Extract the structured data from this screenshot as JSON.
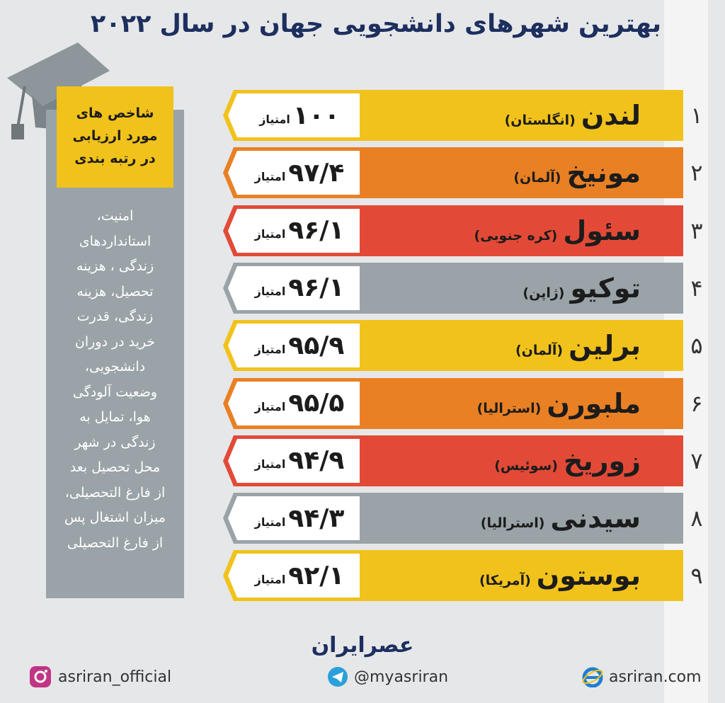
{
  "header": {
    "title": "بهترین شهرهای دانشجویی جهان در سال ۲۰۲۲"
  },
  "sidebar": {
    "heading": [
      "شاخص های",
      "مورد ارزیابی",
      "در رتبه بندی"
    ],
    "lines": [
      "امنیت،",
      "استانداردهای",
      "زندگی ، هزینه",
      "تحصیل، هزینه",
      "زندگی، قدرت",
      "خرید در دوران",
      "دانشجویی،",
      "وضعیت آلودگی",
      "هوا، تمایل به",
      "زندگی در شهر",
      "محل تحصیل بعد",
      "از فارغ التحصیلی،",
      "میزان اشتغال پس",
      "از فارغ التحصیلی"
    ]
  },
  "rows": [
    {
      "rank": "۱",
      "city": "لندن",
      "country": "(انگلستان)",
      "score": "۱۰۰",
      "unit": "امتیاز",
      "color": "#f1c21b"
    },
    {
      "rank": "۲",
      "city": "مونیخ",
      "country": "(آلمان)",
      "score": "۹۷/۴",
      "unit": "امتیاز",
      "color": "#e98024"
    },
    {
      "rank": "۳",
      "city": "سئول",
      "country": "(کره جنوبی)",
      "score": "۹۶/۱",
      "unit": "امتیاز",
      "color": "#e24a37"
    },
    {
      "rank": "۴",
      "city": "توکیو",
      "country": "(ژاپن)",
      "score": "۹۶/۱",
      "unit": "امتیاز",
      "color": "#9aa3a7"
    },
    {
      "rank": "۵",
      "city": "برلین",
      "country": "(آلمان)",
      "score": "۹۵/۹",
      "unit": "امتیاز",
      "color": "#f1c21b"
    },
    {
      "rank": "۶",
      "city": "ملبورن",
      "country": "(استرالیا)",
      "score": "۹۵/۵",
      "unit": "امتیاز",
      "color": "#e98024"
    },
    {
      "rank": "۷",
      "city": "زوریخ",
      "country": "(سوئیس)",
      "score": "۹۴/۹",
      "unit": "امتیاز",
      "color": "#e24a37"
    },
    {
      "rank": "۸",
      "city": "سیدنی",
      "country": "(استرالیا)",
      "score": "۹۴/۳",
      "unit": "امتیاز",
      "color": "#9aa3a7"
    },
    {
      "rank": "۹",
      "city": "بوستون",
      "country": "(آمریکا)",
      "score": "۹۲/۱",
      "unit": "امتیاز",
      "color": "#f1c21b"
    }
  ],
  "footer": {
    "logo": "عصرایران",
    "instagram": "asriran_official",
    "telegram": "@myasriran",
    "website": "asriran.com"
  }
}
